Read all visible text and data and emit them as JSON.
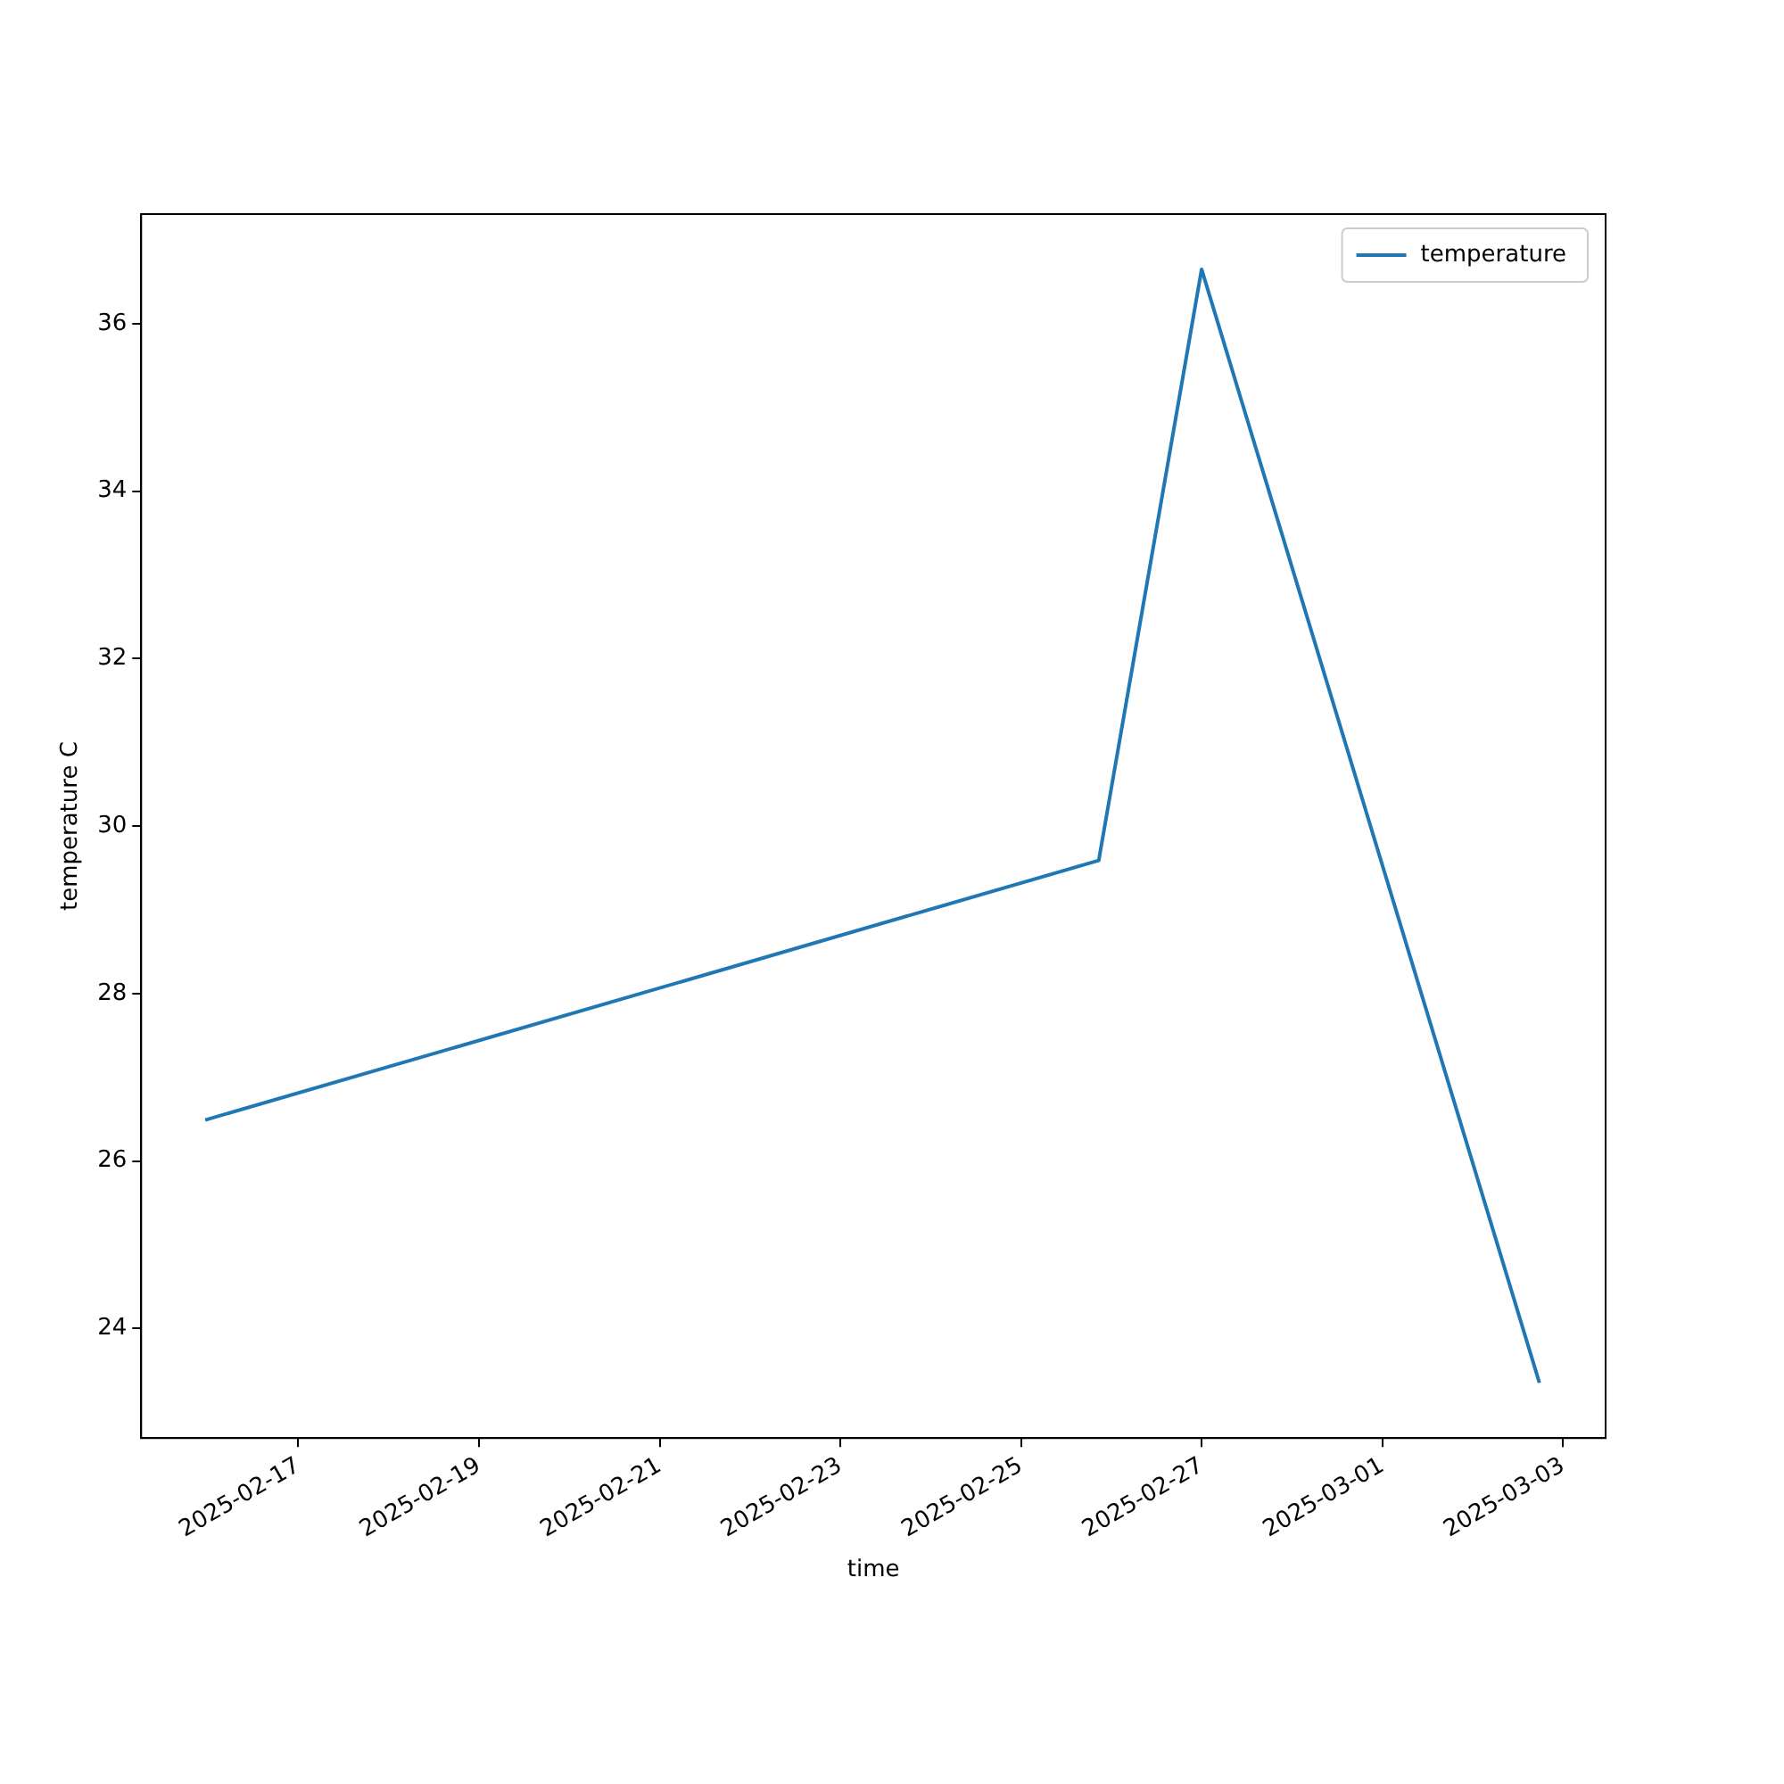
{
  "chart_data": {
    "type": "line",
    "xlabel": "time",
    "ylabel": "temperature C",
    "x": [
      "2025-02-15T23:15",
      "2025-02-25T20:40",
      "2025-02-27T00:00",
      "2025-03-02T17:45"
    ],
    "series": [
      {
        "name": "temperature",
        "color": "#1f77b4",
        "values": [
          26.49,
          29.59,
          36.65,
          23.35
        ]
      }
    ],
    "xlim": [
      "2025-02-15T06:15",
      "2025-03-03T11:20"
    ],
    "xticks": [
      "2025-02-17",
      "2025-02-19",
      "2025-02-21",
      "2025-02-23",
      "2025-02-25",
      "2025-02-27",
      "2025-03-01",
      "2025-03-03"
    ],
    "ylim": [
      22.69,
      37.31
    ],
    "yticks": [
      24,
      26,
      28,
      30,
      32,
      34,
      36
    ],
    "legend": "top right"
  }
}
